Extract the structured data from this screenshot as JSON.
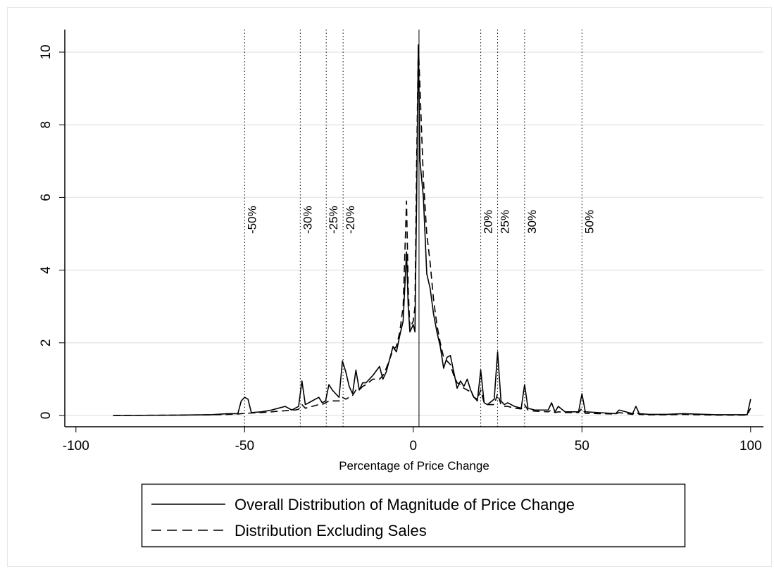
{
  "chart_data": {
    "type": "line",
    "x_label": "Percentage of Price Change",
    "x": [
      -89,
      -70,
      -60,
      -55,
      -52,
      -51,
      -50,
      -49,
      -48,
      -45,
      -42,
      -40,
      -38,
      -36,
      -35,
      -34,
      -33,
      -32,
      -30,
      -28,
      -27,
      -26,
      -25,
      -24,
      -22,
      -21,
      -20,
      -19,
      -18,
      -17,
      -16,
      -15,
      -14,
      -12,
      -10,
      -9,
      -8,
      -6,
      -5,
      -4,
      -3,
      -2,
      -1.5,
      -1,
      0,
      0.5,
      1,
      1.5,
      2,
      3,
      4,
      5,
      6,
      7,
      8,
      9,
      10,
      11,
      12,
      13,
      14,
      15,
      16,
      17,
      18,
      19,
      20,
      21,
      22,
      24,
      25,
      26,
      27,
      28,
      30,
      32,
      33,
      34,
      36,
      40,
      41,
      42,
      43,
      45,
      49,
      50,
      51,
      55,
      60,
      61,
      65,
      66,
      67,
      70,
      75,
      80,
      90,
      99,
      100
    ],
    "series": [
      {
        "name": "Overall Distribution of Magnitude of Price Change",
        "color": "#000000",
        "dash": "solid",
        "values": [
          0,
          0.01,
          0.02,
          0.05,
          0.05,
          0.4,
          0.5,
          0.45,
          0.08,
          0.1,
          0.15,
          0.2,
          0.25,
          0.15,
          0.2,
          0.25,
          0.95,
          0.3,
          0.4,
          0.5,
          0.35,
          0.4,
          0.85,
          0.7,
          0.5,
          1.5,
          1.2,
          0.8,
          0.6,
          1.25,
          0.7,
          0.9,
          0.9,
          1.1,
          1.35,
          1.0,
          1.2,
          1.9,
          1.75,
          2.2,
          2.6,
          4.5,
          3.0,
          2.3,
          2.5,
          2.3,
          6.0,
          10.2,
          7.0,
          6.0,
          3.9,
          3.5,
          2.8,
          2.3,
          1.9,
          1.3,
          1.6,
          1.65,
          1.2,
          0.75,
          0.95,
          0.8,
          1.0,
          0.7,
          0.5,
          0.4,
          1.25,
          0.35,
          0.3,
          0.45,
          1.75,
          0.4,
          0.3,
          0.35,
          0.25,
          0.2,
          0.85,
          0.2,
          0.15,
          0.15,
          0.35,
          0.1,
          0.25,
          0.1,
          0.1,
          0.6,
          0.1,
          0.08,
          0.05,
          0.15,
          0.05,
          0.25,
          0.05,
          0.03,
          0.03,
          0.05,
          0.02,
          0.02,
          0.45
        ]
      },
      {
        "name": "Distribution Excluding Sales",
        "color": "#000000",
        "dash": "dashed",
        "values": [
          0,
          0.01,
          0.02,
          0.03,
          0.04,
          0.05,
          0.06,
          0.06,
          0.07,
          0.08,
          0.1,
          0.12,
          0.13,
          0.15,
          0.15,
          0.17,
          0.3,
          0.2,
          0.25,
          0.3,
          0.3,
          0.35,
          0.4,
          0.4,
          0.4,
          0.5,
          0.45,
          0.5,
          0.55,
          0.7,
          0.7,
          0.8,
          0.85,
          1.0,
          1.0,
          1.1,
          1.3,
          1.8,
          1.9,
          2.3,
          3.0,
          5.9,
          3.5,
          2.4,
          2.6,
          3.0,
          7.0,
          10.2,
          9.0,
          6.5,
          5.0,
          4.2,
          3.2,
          2.5,
          2.0,
          1.6,
          1.5,
          1.4,
          1.1,
          0.9,
          0.85,
          0.75,
          0.7,
          0.65,
          0.5,
          0.45,
          0.7,
          0.35,
          0.3,
          0.3,
          0.6,
          0.3,
          0.25,
          0.25,
          0.2,
          0.18,
          0.3,
          0.15,
          0.12,
          0.1,
          0.15,
          0.08,
          0.1,
          0.08,
          0.08,
          0.2,
          0.06,
          0.05,
          0.04,
          0.08,
          0.03,
          0.1,
          0.03,
          0.02,
          0.02,
          0.03,
          0.01,
          0.01,
          0.2
        ]
      }
    ],
    "reference_lines": [
      {
        "x": -50,
        "label": "-50%"
      },
      {
        "x": -33.5,
        "label": "-30%"
      },
      {
        "x": -25.8,
        "label": "-25%"
      },
      {
        "x": -20.8,
        "label": "-20%"
      },
      {
        "x": 20,
        "label": "20%"
      },
      {
        "x": 25,
        "label": "25%"
      },
      {
        "x": 33,
        "label": "30%"
      },
      {
        "x": 50,
        "label": "50%"
      }
    ],
    "solid_vline": 1.7,
    "xlim": [
      -103.3,
      103.8
    ],
    "ylim": [
      -0.31,
      10.62
    ],
    "xticks": [
      -100,
      -50,
      0,
      50,
      100
    ],
    "yticks": [
      0,
      2,
      4,
      6,
      8,
      10
    ],
    "grid": true
  }
}
